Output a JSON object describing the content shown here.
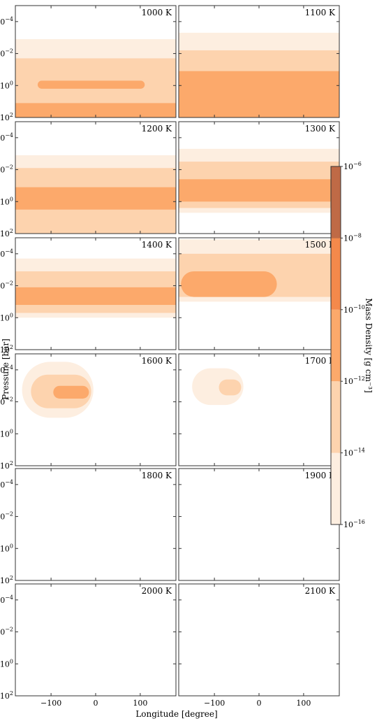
{
  "chart_data": {
    "type": "contour",
    "xlabel": "Longitude [degree]",
    "ylabel": "Pressure [bar]",
    "xlim": [
      -180,
      180
    ],
    "ylim_log10_pressure": [
      2,
      -5
    ],
    "x_tick_labels": [
      "−100",
      "0",
      "100"
    ],
    "x_tick_values": [
      -100,
      0,
      100
    ],
    "y_tick_exponents": [
      -4,
      -2,
      0,
      2
    ],
    "colorbar": {
      "label": "Mass Density [g cm⁻³]",
      "tick_exponents": [
        -16,
        -14,
        -12,
        -10,
        -8,
        -6
      ],
      "levels": [
        {
          "range": "1e-16 to 1e-14",
          "color": "#fdeee0"
        },
        {
          "range": "1e-14 to 1e-12",
          "color": "#fdd3ae"
        },
        {
          "range": "1e-12 to 1e-10",
          "color": "#fca96b"
        },
        {
          "range": "1e-10 to 1e-8",
          "color": "#f4894b"
        },
        {
          "range": "1e-8 to 1e-6",
          "color": "#bf6a46"
        }
      ]
    },
    "panels": [
      {
        "label": "1000 K",
        "level_extents": [
          {
            "level": 0,
            "lon_range": [
              -180,
              180
            ],
            "log10_p_range": [
              -2.9,
              2
            ]
          },
          {
            "level": 1,
            "lon_range": [
              -180,
              180
            ],
            "log10_p_range": [
              -1.7,
              2
            ]
          },
          {
            "level": 2,
            "lon_range": [
              -130,
              110
            ],
            "log10_p_range": [
              -0.3,
              0.2
            ]
          },
          {
            "level": 2,
            "lon_range": [
              -180,
              180
            ],
            "log10_p_range": [
              1.1,
              2
            ]
          }
        ]
      },
      {
        "label": "1100 K",
        "level_extents": [
          {
            "level": 0,
            "lon_range": [
              -180,
              180
            ],
            "log10_p_range": [
              -3.3,
              2
            ]
          },
          {
            "level": 1,
            "lon_range": [
              -180,
              180
            ],
            "log10_p_range": [
              -2.2,
              2
            ]
          },
          {
            "level": 2,
            "lon_range": [
              -180,
              180
            ],
            "log10_p_range": [
              -0.9,
              2
            ]
          }
        ]
      },
      {
        "label": "1200 K",
        "level_extents": [
          {
            "level": 0,
            "lon_range": [
              -180,
              180
            ],
            "log10_p_range": [
              -2.9,
              2
            ]
          },
          {
            "level": 1,
            "lon_range": [
              -180,
              180
            ],
            "log10_p_range": [
              -2.1,
              2
            ]
          },
          {
            "level": 2,
            "lon_range": [
              -180,
              180
            ],
            "log10_p_range": [
              -0.9,
              0.5
            ]
          }
        ]
      },
      {
        "label": "1300 K",
        "level_extents": [
          {
            "level": 0,
            "lon_range": [
              -180,
              180
            ],
            "log10_p_range": [
              -3.3,
              0.7
            ]
          },
          {
            "level": 1,
            "lon_range": [
              -180,
              180
            ],
            "log10_p_range": [
              -2.5,
              0.4
            ]
          },
          {
            "level": 2,
            "lon_range": [
              -180,
              180
            ],
            "log10_p_range": [
              -1.4,
              0
            ]
          }
        ]
      },
      {
        "label": "1400 K",
        "level_extents": [
          {
            "level": 0,
            "lon_range": [
              -180,
              180
            ],
            "log10_p_range": [
              -3.7,
              0
            ]
          },
          {
            "level": 1,
            "lon_range": [
              -180,
              180
            ],
            "log10_p_range": [
              -2.9,
              -0.3
            ]
          },
          {
            "level": 2,
            "lon_range": [
              -180,
              180
            ],
            "log10_p_range": [
              -1.9,
              -0.8
            ]
          }
        ]
      },
      {
        "label": "1500 K",
        "level_extents": [
          {
            "level": 0,
            "lon_range": [
              -180,
              180
            ],
            "log10_p_range": [
              -4.9,
              -1.0
            ]
          },
          {
            "level": 1,
            "lon_range": [
              -180,
              180
            ],
            "log10_p_range": [
              -4.0,
              -1.3
            ]
          },
          {
            "level": 2,
            "lon_range": [
              -175,
              40
            ],
            "log10_p_range": [
              -2.9,
              -1.3
            ]
          }
        ]
      },
      {
        "label": "1600 K",
        "level_extents": [
          {
            "level": 0,
            "lon_range": [
              -165,
              -5
            ],
            "log10_p_range": [
              -4.5,
              -1.0
            ]
          },
          {
            "level": 1,
            "lon_range": [
              -145,
              -10
            ],
            "log10_p_range": [
              -3.7,
              -1.6
            ]
          },
          {
            "level": 2,
            "lon_range": [
              -95,
              -15
            ],
            "log10_p_range": [
              -3.0,
              -2.2
            ]
          }
        ]
      },
      {
        "label": "1700 K",
        "level_extents": [
          {
            "level": 0,
            "lon_range": [
              -150,
              -35
            ],
            "log10_p_range": [
              -4.1,
              -1.8
            ]
          },
          {
            "level": 1,
            "lon_range": [
              -90,
              -40
            ],
            "log10_p_range": [
              -3.4,
              -2.4
            ]
          }
        ]
      },
      {
        "label": "1800 K",
        "level_extents": []
      },
      {
        "label": "1900 K",
        "level_extents": []
      },
      {
        "label": "2000 K",
        "level_extents": []
      },
      {
        "label": "2100 K",
        "level_extents": []
      }
    ]
  }
}
